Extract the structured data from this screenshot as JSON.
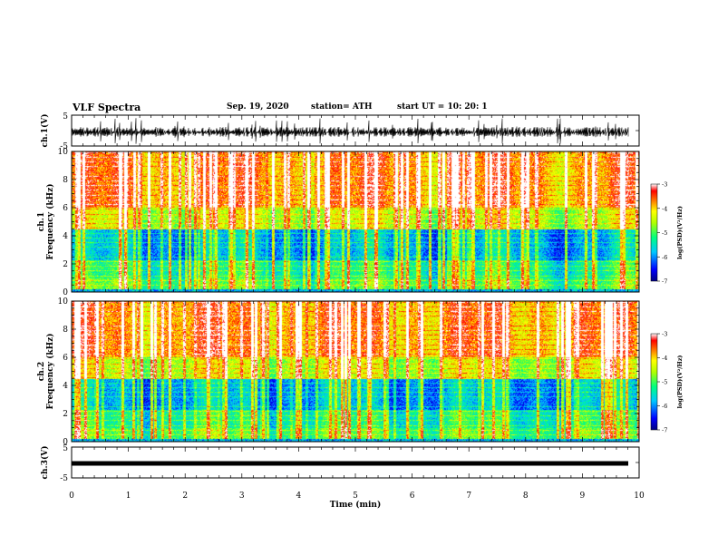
{
  "header": {
    "title": "VLF Spectra",
    "date": "Sep. 19, 2020",
    "station": "station= ATH",
    "start_ut": "start  UT =    10: 20: 1"
  },
  "chart_data": [
    {
      "type": "line",
      "name": "ch1-waveform",
      "ylabel": "ch.1(V)",
      "ylim": [
        -5,
        5
      ],
      "yticks": [
        "5",
        "-5"
      ],
      "xlim": [
        0,
        10
      ],
      "note_color": "#000000"
    },
    {
      "type": "heatmap",
      "name": "ch1-spectrogram",
      "ylabel": "ch.1\nFrequency (kHz)",
      "ylabel_line1": "ch.1",
      "ylabel_line2": "Frequency  (kHz)",
      "ylim": [
        0,
        10
      ],
      "yticks": [
        "0",
        "2",
        "4",
        "6",
        "8",
        "10"
      ],
      "xlim": [
        0,
        10
      ],
      "colorbar": {
        "label": "log(PSD)(V²/Hz)",
        "range": [
          -7,
          -3
        ],
        "ticks": [
          "-3",
          "-4",
          "-5",
          "-6",
          "-7"
        ]
      }
    },
    {
      "type": "heatmap",
      "name": "ch2-spectrogram",
      "ylabel": "ch.2\nFrequency (kHz)",
      "ylabel_line1": "ch.2",
      "ylabel_line2": "Frequency  (kHz)",
      "ylim": [
        0,
        10
      ],
      "yticks": [
        "0",
        "2",
        "4",
        "6",
        "8",
        "10"
      ],
      "xlim": [
        0,
        10
      ],
      "colorbar": {
        "label": "log(PSD)(V²/Hz)",
        "range": [
          -7,
          -3
        ],
        "ticks": [
          "-3",
          "-4",
          "-5",
          "-6",
          "-7"
        ]
      }
    },
    {
      "type": "line",
      "name": "ch3-waveform",
      "ylabel": "ch.3(V)",
      "ylim": [
        -5,
        5
      ],
      "yticks": [
        "5",
        "-5"
      ],
      "xlim": [
        0,
        10
      ],
      "xlabel": "Time  (min)",
      "xticks": [
        "0",
        "1",
        "2",
        "3",
        "4",
        "5",
        "6",
        "7",
        "8",
        "9",
        "10"
      ]
    }
  ]
}
